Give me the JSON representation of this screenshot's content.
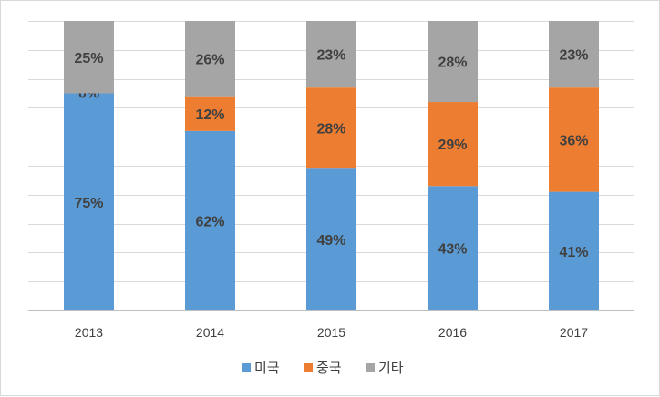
{
  "chart_data": {
    "type": "bar",
    "stacked": true,
    "categories": [
      "2013",
      "2014",
      "2015",
      "2016",
      "2017"
    ],
    "series": [
      {
        "name": "미국",
        "values": [
          75,
          62,
          49,
          43,
          41
        ],
        "labels": [
          "75%",
          "62%",
          "49%",
          "43%",
          "41%"
        ],
        "color": "#5b9bd5",
        "label_color": "#404040"
      },
      {
        "name": "중국",
        "values": [
          0,
          12,
          28,
          29,
          36
        ],
        "labels": [
          "0%",
          "12%",
          "28%",
          "29%",
          "36%"
        ],
        "color": "#ed7d31",
        "label_color": "#404040"
      },
      {
        "name": "기타",
        "values": [
          25,
          26,
          23,
          28,
          23
        ],
        "labels": [
          "25%",
          "26%",
          "23%",
          "28%",
          "23%"
        ],
        "color": "#a5a5a5",
        "label_color": "#404040"
      }
    ],
    "ylim": [
      0,
      100
    ],
    "grid": true,
    "legend_position": "bottom",
    "title": "",
    "xlabel": "",
    "ylabel": ""
  }
}
